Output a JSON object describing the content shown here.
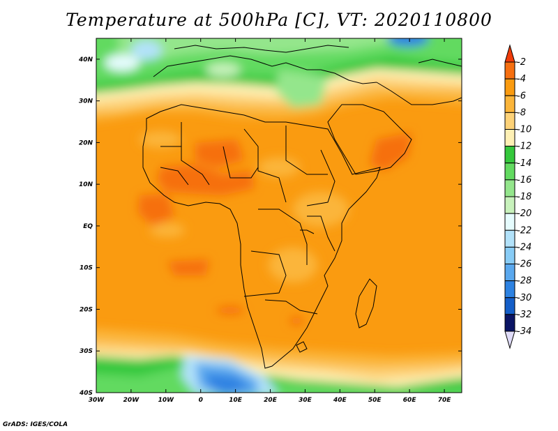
{
  "title": "Temperature at 500hPa [C], VT: 2020110800",
  "credit": "GrADS: IGES/COLA",
  "map": {
    "lon_range": [
      -30,
      75
    ],
    "lat_range": [
      -40,
      45
    ],
    "x_ticks": [
      {
        "value": -30,
        "label": "30W"
      },
      {
        "value": -20,
        "label": "20W"
      },
      {
        "value": -10,
        "label": "10W"
      },
      {
        "value": 0,
        "label": "0"
      },
      {
        "value": 10,
        "label": "10E"
      },
      {
        "value": 20,
        "label": "20E"
      },
      {
        "value": 30,
        "label": "30E"
      },
      {
        "value": 40,
        "label": "40E"
      },
      {
        "value": 50,
        "label": "50E"
      },
      {
        "value": 60,
        "label": "60E"
      },
      {
        "value": 70,
        "label": "70E"
      }
    ],
    "y_ticks": [
      {
        "value": 40,
        "label": "40N"
      },
      {
        "value": 30,
        "label": "30N"
      },
      {
        "value": 20,
        "label": "20N"
      },
      {
        "value": 10,
        "label": "10N"
      },
      {
        "value": 0,
        "label": "EQ"
      },
      {
        "value": -10,
        "label": "10S"
      },
      {
        "value": -20,
        "label": "20S"
      },
      {
        "value": -30,
        "label": "30S"
      },
      {
        "value": -40,
        "label": "40S"
      }
    ]
  },
  "colorbar": {
    "levels": [
      "-2",
      "-4",
      "-6",
      "-8",
      "-10",
      "-12",
      "-14",
      "-16",
      "-18",
      "-20",
      "-22",
      "-24",
      "-26",
      "-28",
      "-30",
      "-32",
      "-34"
    ],
    "colors": [
      "#f04a10",
      "#f66f10",
      "#fa9b10",
      "#fbb53a",
      "#fdd278",
      "#fef0b4",
      "#35c83c",
      "#62da60",
      "#94e68c",
      "#c8f2bc",
      "#e6fcfe",
      "#b2e2fa",
      "#88ccf6",
      "#5aa8ee",
      "#2d82e2",
      "#145ec8",
      "#0a3aa8",
      "#0a1464"
    ],
    "top_arrow_color": "#f03c0a",
    "bottom_arrow_color": "#e0dcf8"
  }
}
